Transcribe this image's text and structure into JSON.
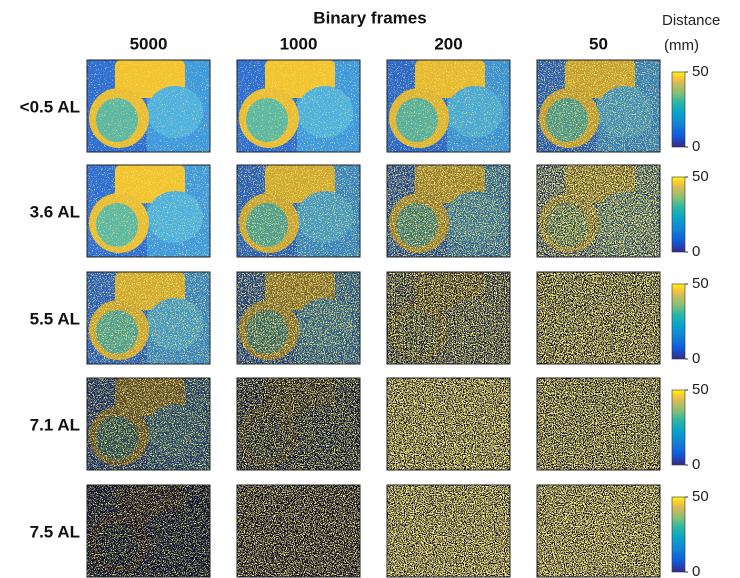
{
  "header": {
    "title": "Binary frames",
    "columns": [
      "5000",
      "1000",
      "200",
      "50"
    ]
  },
  "rows": [
    "<0.5 AL",
    "3.6 AL",
    "5.5 AL",
    "7.1 AL",
    "7.5 AL"
  ],
  "colorbar": {
    "label": [
      "Distance",
      "(mm)"
    ],
    "range": [
      0,
      50
    ],
    "ticks": [
      0,
      50
    ]
  }
}
